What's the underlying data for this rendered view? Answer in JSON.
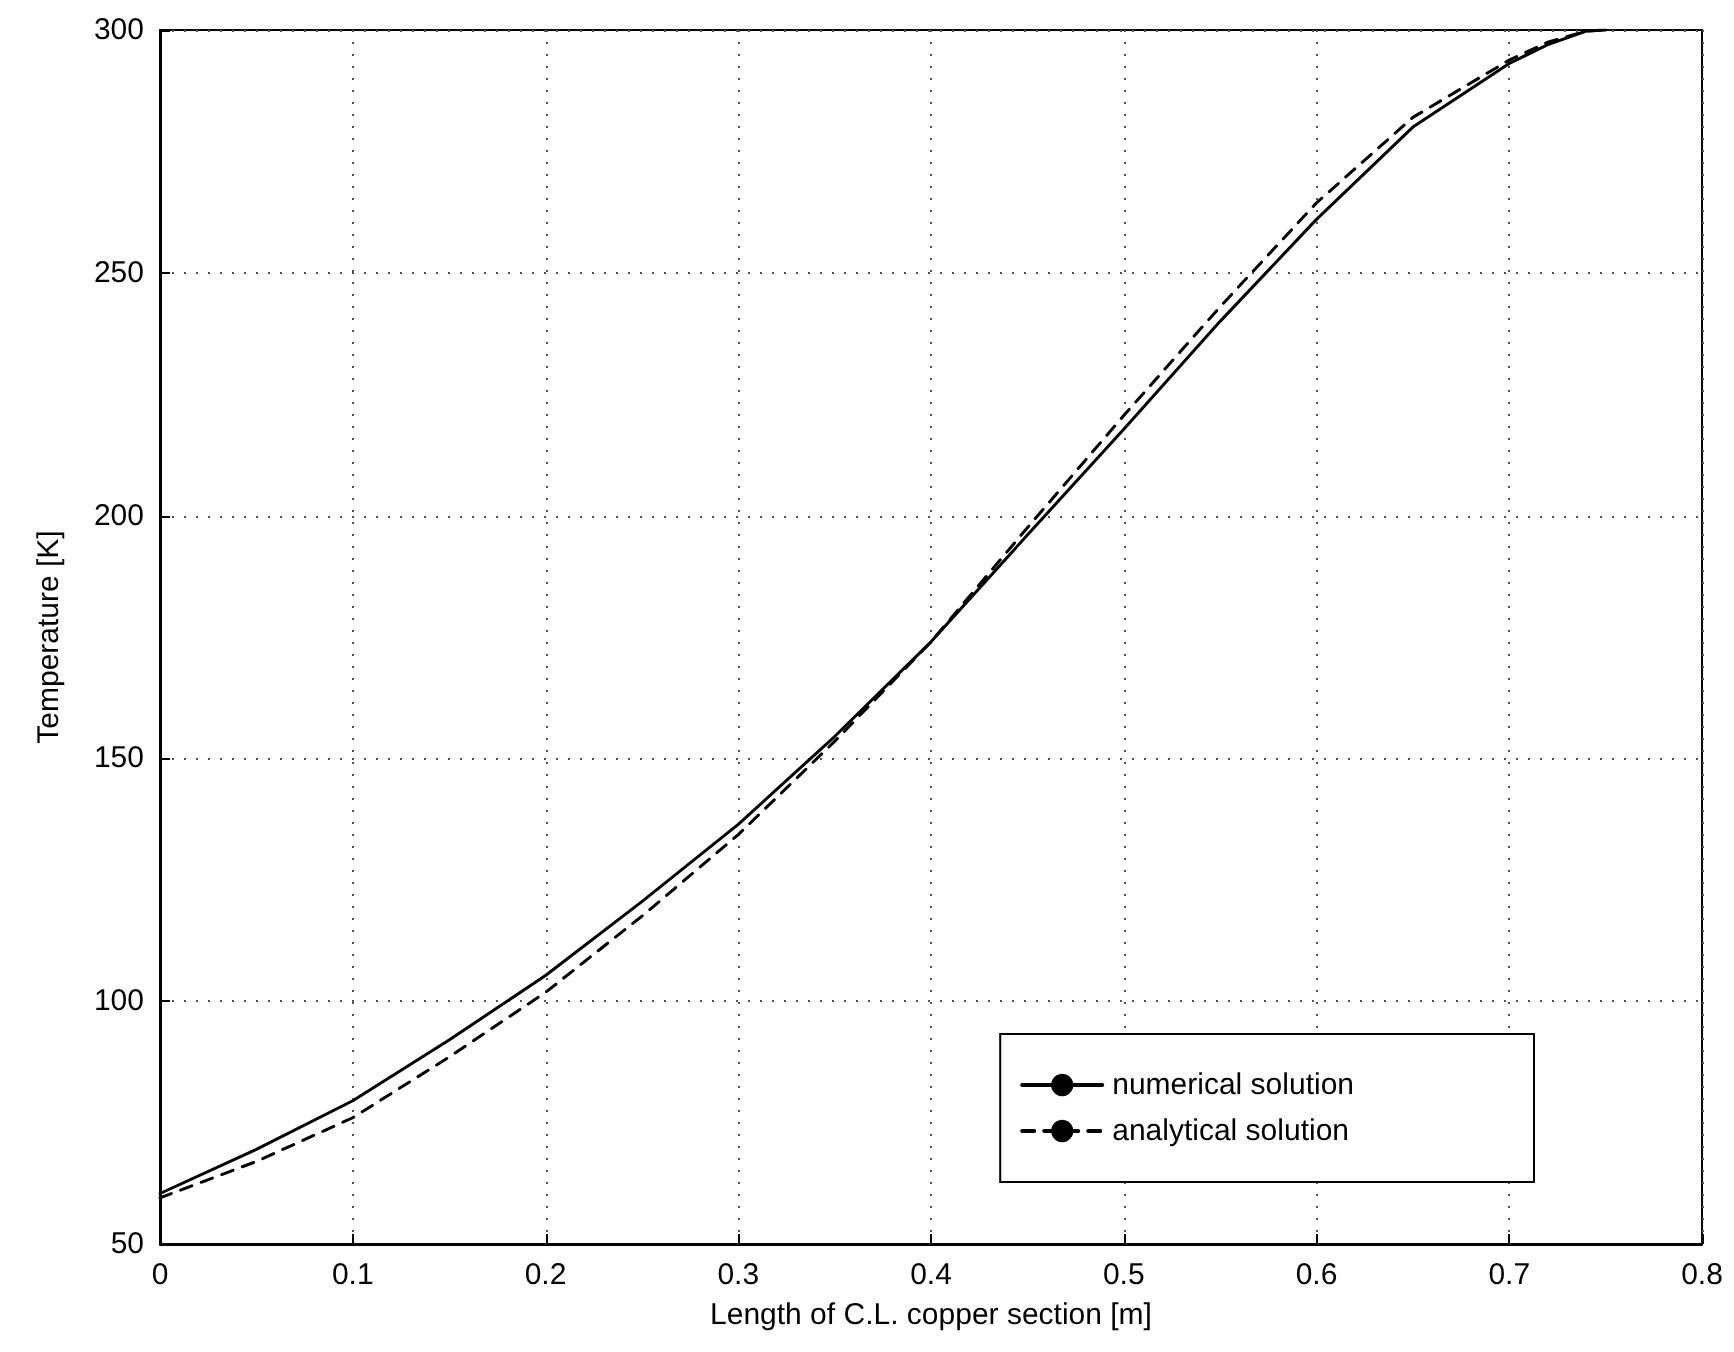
{
  "chart_data": {
    "type": "line",
    "xlabel": "Length of C.L. copper section [m]",
    "ylabel": "Temperature [K]",
    "xlim": [
      0,
      0.8
    ],
    "xticks": [
      0,
      0.1,
      0.2,
      0.3,
      0.4,
      0.5,
      0.6,
      0.7,
      0.8
    ],
    "ylim": [
      50,
      300
    ],
    "yticks": [
      50,
      100,
      150,
      200,
      250,
      300
    ],
    "grid": true,
    "legend": "bottom right",
    "marker": "none",
    "series": [
      {
        "name": "numerical solution",
        "color": "#000000",
        "line_style": "solid",
        "x": [
          0,
          0.05,
          0.1,
          0.15,
          0.2,
          0.25,
          0.3,
          0.35,
          0.4,
          0.45,
          0.5,
          0.55,
          0.6,
          0.65,
          0.7,
          0.72,
          0.74,
          0.75
        ],
        "values": [
          60.4,
          69.5,
          79.5,
          92,
          105.3,
          120.5,
          136.4,
          154.5,
          174,
          196,
          217.8,
          240,
          261,
          280,
          293.1,
          297,
          299.8,
          300
        ]
      },
      {
        "name": "analytical solution",
        "color": "#000000",
        "line_style": "dashed",
        "x": [
          0,
          0.05,
          0.1,
          0.15,
          0.2,
          0.25,
          0.3,
          0.35,
          0.4,
          0.45,
          0.5,
          0.55,
          0.6,
          0.65,
          0.7,
          0.72,
          0.74,
          0.75
        ],
        "values": [
          59.5,
          67,
          76,
          88.5,
          101.8,
          117.5,
          134.3,
          153.5,
          174,
          197.5,
          220.6,
          243,
          264.4,
          282,
          293.8,
          297.5,
          299.8,
          300
        ]
      }
    ]
  }
}
